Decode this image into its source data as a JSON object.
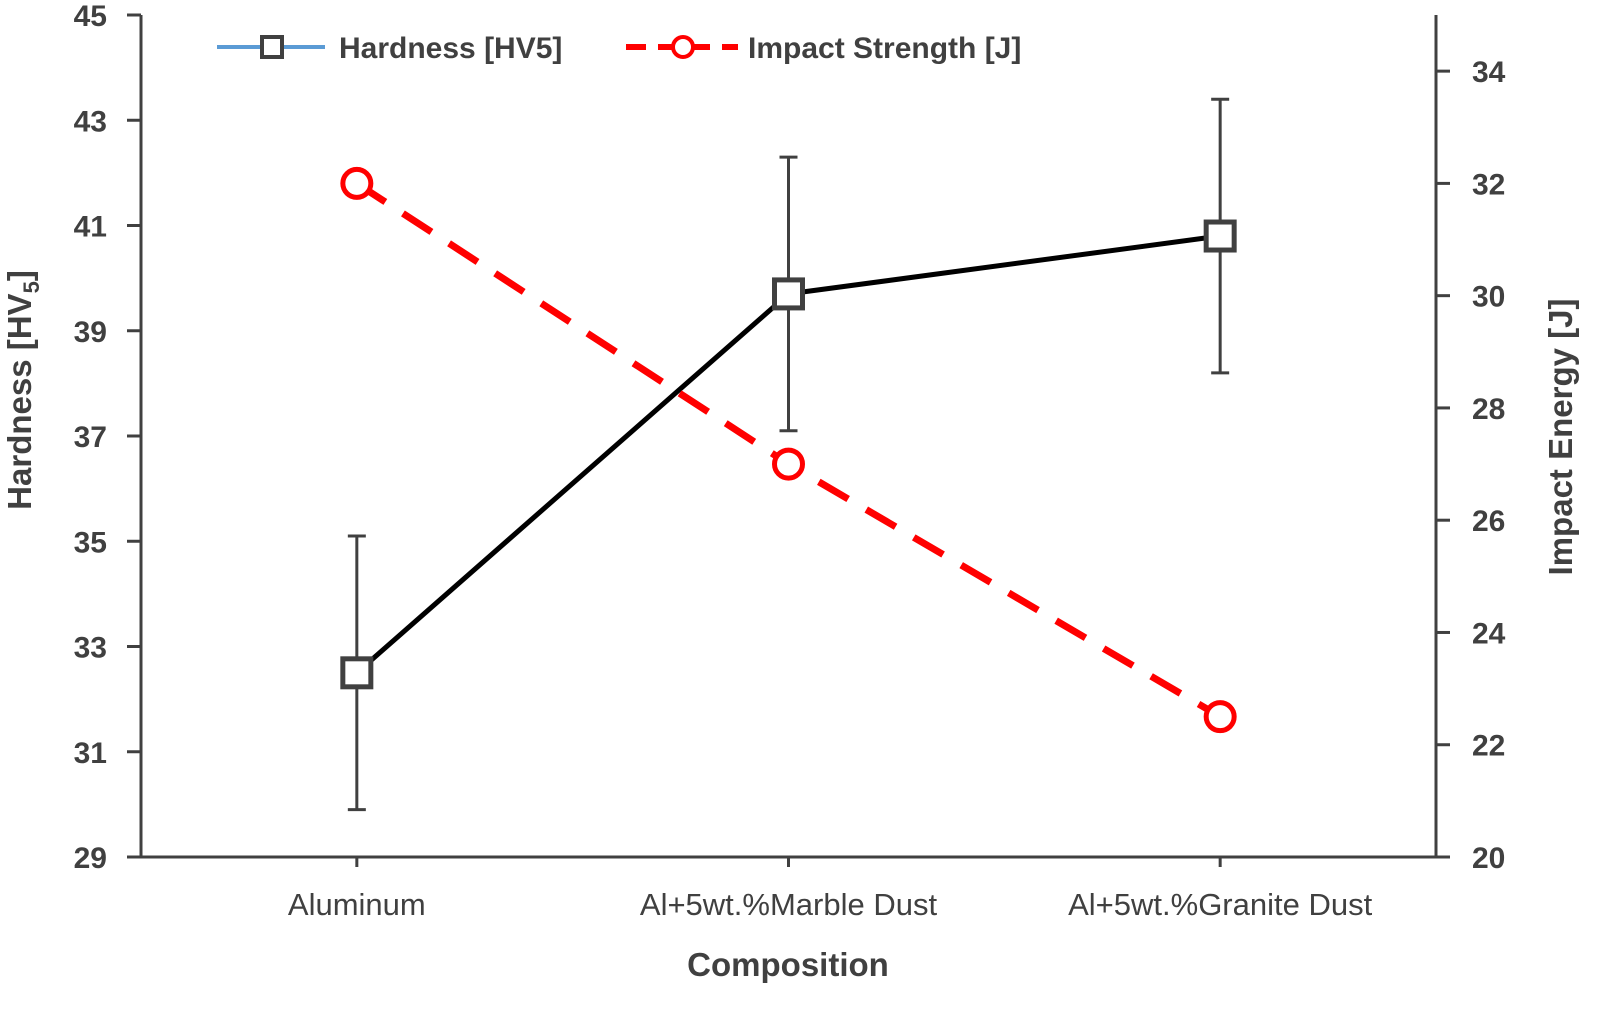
{
  "chart_data": {
    "type": "line",
    "title": "",
    "xlabel": "Composition",
    "ylabel_left": {
      "main": "Hardness [HV",
      "sub": "5",
      "close": "]"
    },
    "ylabel_right": "Impact Energy [J]",
    "categories": [
      "Aluminum",
      "Al+5wt.%Marble Dust",
      "Al+5wt.%Granite Dust"
    ],
    "y_left": {
      "lim": [
        29,
        45
      ],
      "ticks": [
        "29",
        "31",
        "33",
        "35",
        "37",
        "39",
        "41",
        "43",
        "45"
      ]
    },
    "y_right": {
      "lim": [
        20,
        35
      ],
      "ticks": [
        "20",
        "22",
        "24",
        "26",
        "28",
        "30",
        "32",
        "34"
      ]
    },
    "grid": false,
    "legend_position": "top",
    "series": [
      {
        "name": "Hardness [HV5]",
        "axis": "left",
        "values": [
          32.5,
          39.7,
          40.8
        ],
        "error_low": [
          29.9,
          37.1,
          38.2
        ],
        "error_high": [
          35.1,
          42.3,
          43.4
        ],
        "marker": "square",
        "line_style": "solid",
        "line_color": "#000000",
        "marker_color": "#404040",
        "legend_line_color": "#5B9BD5"
      },
      {
        "name": "Impact Strength [J]",
        "axis": "right",
        "values": [
          32,
          27,
          22.5
        ],
        "marker": "circle",
        "line_style": "dashed",
        "line_color": "#FF0000",
        "marker_color": "#FF0000"
      }
    ],
    "colors": {
      "axis": "#404040",
      "error_bar": "#404040"
    }
  }
}
